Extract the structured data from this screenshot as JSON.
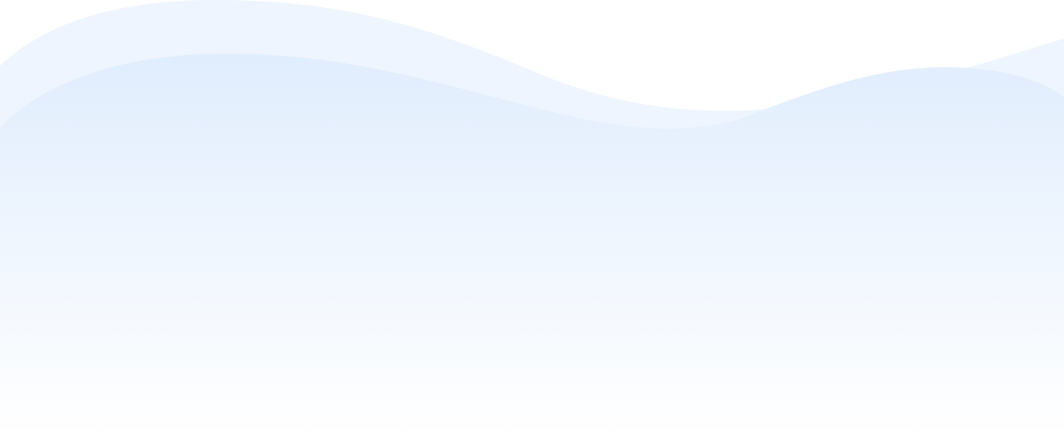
{
  "background": {
    "page_color": "#ffffff",
    "wave_back_color": "#eef5fe",
    "wave_front_top_color": "#e0edfd",
    "wave_front_bottom_color": "#ffffff"
  }
}
